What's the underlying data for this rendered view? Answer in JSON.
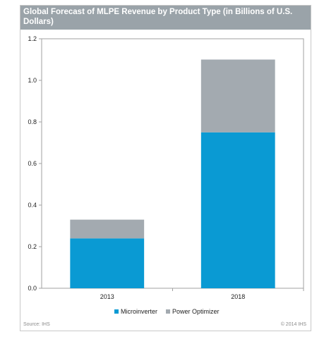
{
  "chart_data": {
    "type": "bar",
    "stacked": true,
    "title": "Global Forecast of MLPE Revenue by Product Type (in Billions of U.S. Dollars)",
    "xlabel": "",
    "ylabel": "",
    "categories": [
      "2013",
      "2018"
    ],
    "series": [
      {
        "name": "Microinverter",
        "values": [
          0.24,
          0.75
        ],
        "color": "#0a9ad3"
      },
      {
        "name": "Power Optimizer",
        "values": [
          0.09,
          0.35
        ],
        "color": "#a3aab0"
      }
    ],
    "ylim": [
      0,
      1.2
    ],
    "yticks": [
      "0.0",
      "0.2",
      "0.4",
      "0.6",
      "0.8",
      "1.0",
      "1.2"
    ],
    "grid": false,
    "legend_position": "bottom-center"
  },
  "footer": {
    "source": "Source: IHS",
    "copyright": "© 2014 IHS"
  }
}
